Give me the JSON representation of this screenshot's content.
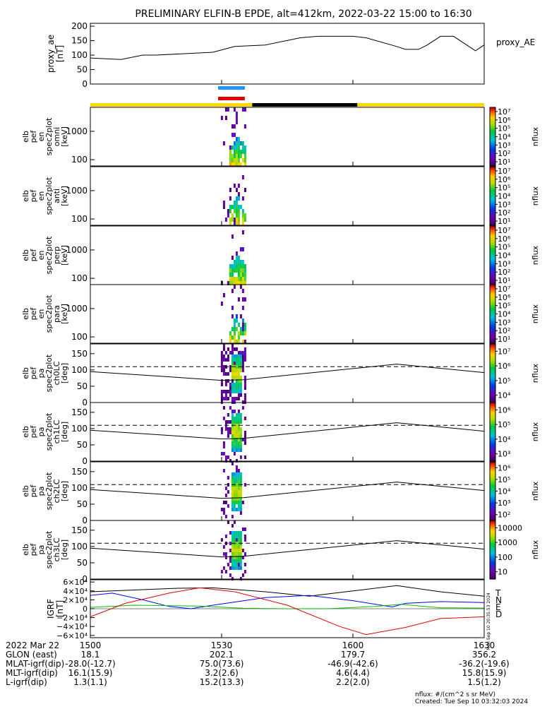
{
  "title": "PRELIMINARY ELFIN-B EPDE, alt=412km, 2022-03-22 15:00 to 16:30",
  "colors": {
    "background": "#ffffff",
    "axes": "#000000",
    "sunlit_bar": "#ffd700",
    "shadow_bar": "#000000",
    "sci_zone_blue": "#1e90ff",
    "sci_zone_red": "#e00000",
    "mag_T": "#000000",
    "mag_N": "#0000ff",
    "mag_E": "#00c000",
    "mag_D": "#e00000"
  },
  "chart_data": [
    {
      "type": "line",
      "panel": "proxy_ae",
      "ylabel_lines": [
        "proxy_ae",
        "[nT]"
      ],
      "legend": "proxy_AE",
      "ylim": [
        0,
        210
      ],
      "yticks": [
        "0",
        "50",
        "100",
        "150",
        "200"
      ],
      "x_minutes": [
        0,
        7,
        12,
        15,
        28,
        33,
        40,
        48,
        52,
        55,
        60,
        63,
        70,
        72,
        75,
        77,
        80,
        83,
        88,
        90
      ],
      "values": [
        90,
        85,
        100,
        100,
        110,
        130,
        135,
        160,
        165,
        165,
        165,
        160,
        130,
        120,
        120,
        135,
        165,
        165,
        115,
        135
      ]
    },
    {
      "type": "heatmap",
      "panel": "omni",
      "ylabel_lines": [
        "elb",
        "pef",
        "en",
        "spec2plot",
        "omni",
        "[keV]"
      ],
      "scale": "log",
      "ylim": [
        60,
        7000
      ],
      "yticks": [
        "100",
        "1000"
      ],
      "cbar_label": "nflux",
      "cbar_ticks": [
        "10¹",
        "10²",
        "10³",
        "10⁴",
        "10⁵",
        "10⁶",
        "10⁷"
      ],
      "cbar_range": [
        1,
        7
      ]
    },
    {
      "type": "heatmap",
      "panel": "anti",
      "ylabel_lines": [
        "elb",
        "pef",
        "en",
        "spec2plot",
        "anti",
        "[keV]"
      ],
      "scale": "log",
      "ylim": [
        60,
        7000
      ],
      "yticks": [
        "100",
        "1000"
      ],
      "cbar_label": "nflux",
      "cbar_ticks": [
        "10¹",
        "10²",
        "10³",
        "10⁴",
        "10⁵",
        "10⁶",
        "10⁷"
      ],
      "cbar_range": [
        1,
        7
      ]
    },
    {
      "type": "heatmap",
      "panel": "perp",
      "ylabel_lines": [
        "elb",
        "pef",
        "en",
        "spec2plot",
        "perp",
        "[keV]"
      ],
      "scale": "log",
      "ylim": [
        60,
        7000
      ],
      "yticks": [
        "100",
        "1000"
      ],
      "cbar_label": "nflux",
      "cbar_ticks": [
        "10¹",
        "10²",
        "10³",
        "10⁴",
        "10⁵",
        "10⁶",
        "10⁷"
      ],
      "cbar_range": [
        1,
        7
      ]
    },
    {
      "type": "heatmap",
      "panel": "para",
      "ylabel_lines": [
        "elb",
        "pef",
        "en",
        "spec2plot",
        "para",
        "[keV]"
      ],
      "scale": "log",
      "ylim": [
        60,
        7000
      ],
      "yticks": [
        "100",
        "1000"
      ],
      "cbar_label": "nflux",
      "cbar_ticks": [
        "10¹",
        "10²",
        "10³",
        "10⁴",
        "10⁵",
        "10⁶",
        "10⁷"
      ],
      "cbar_range": [
        1,
        7
      ]
    },
    {
      "type": "heatmap",
      "panel": "ch0LC",
      "ylabel_lines": [
        "elb",
        "pef",
        "pa",
        "spec2plot",
        "ch0LC",
        "[deg]"
      ],
      "ylim": [
        0,
        180
      ],
      "yticks": [
        "0",
        "50",
        "100",
        "150"
      ],
      "cbar_label": "nflux",
      "cbar_ticks": [
        "10⁴",
        "10⁵",
        "10⁶",
        "10⁷"
      ],
      "cbar_range": [
        3.5,
        7.3
      ]
    },
    {
      "type": "heatmap",
      "panel": "ch1LC",
      "ylabel_lines": [
        "elb",
        "pef",
        "pa",
        "spec2plot",
        "ch1LC",
        "[deg]"
      ],
      "ylim": [
        0,
        180
      ],
      "yticks": [
        "0",
        "50",
        "100",
        "150"
      ],
      "cbar_label": "nflux",
      "cbar_ticks": [
        "10³",
        "10⁴",
        "10⁵",
        "10⁶"
      ],
      "cbar_range": [
        2.6,
        6.6
      ]
    },
    {
      "type": "heatmap",
      "panel": "ch2LC",
      "ylabel_lines": [
        "elb",
        "pef",
        "pa",
        "spec2plot",
        "ch2LC",
        "[deg]"
      ],
      "ylim": [
        0,
        180
      ],
      "yticks": [
        "0",
        "50",
        "100",
        "150"
      ],
      "cbar_label": "nflux",
      "cbar_ticks": [
        "10²",
        "10³",
        "10⁴",
        "10⁵",
        "10⁶"
      ],
      "cbar_range": [
        1.7,
        6.6
      ]
    },
    {
      "type": "heatmap",
      "panel": "ch3LC",
      "ylabel_lines": [
        "elb",
        "pef",
        "pa",
        "spec2plot",
        "ch3LC",
        "[deg]"
      ],
      "ylim": [
        0,
        180
      ],
      "yticks": [
        "0",
        "50",
        "100",
        "150"
      ],
      "cbar_label": "nflux",
      "cbar_ticks": [
        "10",
        "100",
        "1000",
        "10000"
      ],
      "cbar_range": [
        0.8,
        4.5
      ]
    },
    {
      "type": "line",
      "panel": "igrf",
      "ylabel_lines": [
        "IGRF",
        "[nT]"
      ],
      "ylim": [
        -65000,
        65000
      ],
      "yticks": [
        "6×10⁴",
        "4×10⁴",
        "2×10⁴",
        "0",
        "−2×10⁴",
        "−4×10⁴",
        "−6×10⁴"
      ],
      "ytick_values": [
        60000,
        40000,
        20000,
        0,
        -20000,
        -40000,
        -60000
      ],
      "series": [
        {
          "name": "T",
          "x_minutes": [
            0,
            10,
            20,
            28,
            40,
            50,
            60,
            70,
            80,
            90
          ],
          "values": [
            38000,
            42000,
            46000,
            47000,
            38000,
            28000,
            40000,
            52000,
            38000,
            28000
          ]
        },
        {
          "name": "N",
          "x_minutes": [
            0,
            5,
            12,
            18,
            23,
            28,
            40,
            50,
            60,
            69,
            72,
            80,
            90
          ],
          "values": [
            30000,
            35000,
            20000,
            5000,
            0,
            8000,
            25000,
            30000,
            18000,
            4000,
            12000,
            16000,
            14000
          ]
        },
        {
          "name": "E",
          "x_minutes": [
            0,
            10,
            25,
            35,
            45,
            55,
            65,
            71,
            80,
            90
          ],
          "values": [
            3000,
            8000,
            6000,
            1000,
            0,
            500,
            5000,
            10000,
            2000,
            1500
          ]
        },
        {
          "name": "D",
          "x_minutes": [
            0,
            8,
            18,
            25,
            33,
            45,
            57,
            63,
            72,
            80,
            90
          ],
          "values": [
            -18000,
            12000,
            35000,
            47000,
            38000,
            8000,
            -40000,
            -58000,
            -42000,
            -22000,
            -18000
          ]
        }
      ],
      "legend": [
        "T",
        "N",
        "E",
        "D"
      ]
    }
  ],
  "time_axis": {
    "xlim_minutes": [
      0,
      90
    ],
    "ticks_minutes": [
      0,
      30,
      60,
      90
    ],
    "rows": [
      {
        "label": "2022 Mar 22",
        "values": [
          "1500",
          "1530",
          "1600",
          "1630"
        ]
      },
      {
        "label": "GLON (east)",
        "values": [
          "18.1",
          "202.1",
          "179.7",
          "356.2"
        ]
      },
      {
        "label": "MLAT-igrf(dip)",
        "values": [
          "-28.0(-12.7)",
          "75.0(73.6)",
          "-46.9(-42.6)",
          "-36.2(-19.6)"
        ]
      },
      {
        "label": "MLT-igrf(dip)",
        "values": [
          "16.1(15.9)",
          "3.2(2.6)",
          "4.6(4.4)",
          "15.8(15.9)"
        ]
      },
      {
        "label": "L-igrf(dip)",
        "values": [
          "1.3(1.1)",
          "15.2(13.3)",
          "2.2(2.0)",
          "1.5(1.2)"
        ]
      }
    ]
  },
  "footer": {
    "units": "nflux: #/(cm^2 s sr MeV)",
    "created": "Created: Tue Sep 10 03:32:03 2024",
    "vertical_stamp": "Mon Sep 10 20:35:53 2024"
  },
  "status_bars": {
    "sunlit_color": "yellow",
    "shadow_range_minutes": [
      37,
      61
    ],
    "science_zone_minutes": [
      29.2,
      35.3
    ]
  },
  "pa_lines": {
    "dashed_value": 110,
    "solid_x_minutes": [
      0,
      30,
      35,
      70,
      90
    ],
    "solid_values": [
      95,
      68,
      70,
      118,
      92
    ]
  }
}
